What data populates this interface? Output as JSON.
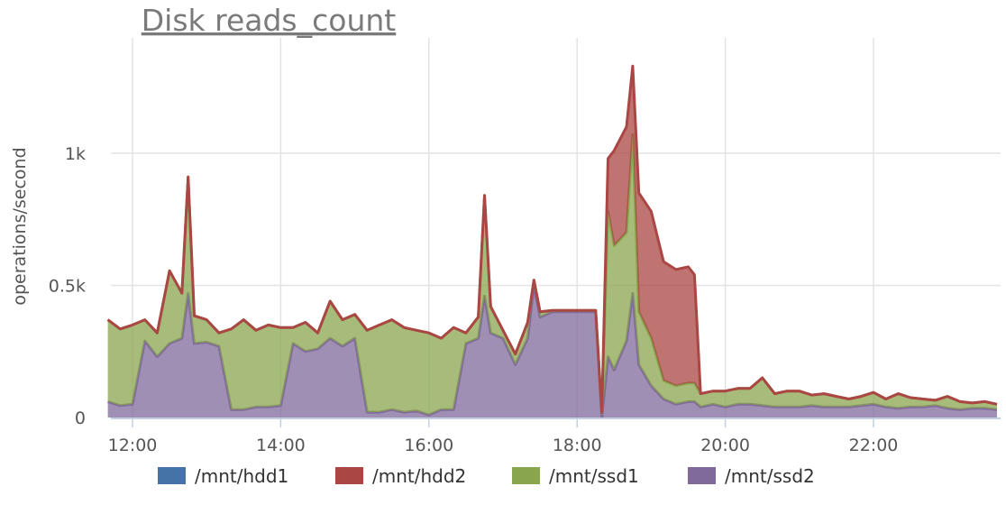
{
  "chart_data": {
    "type": "area",
    "stacked": true,
    "title": "Disk reads_count",
    "xlabel": "",
    "ylabel": "operations/second",
    "ylim": [
      0,
      1450
    ],
    "xlim": [
      "11:40",
      "23:45"
    ],
    "grid": true,
    "legend_position": "bottom",
    "x_ticks": [
      "12:00",
      "14:00",
      "16:00",
      "18:00",
      "20:00",
      "22:00"
    ],
    "y_ticks": [
      {
        "value": 0,
        "label": "0"
      },
      {
        "value": 500,
        "label": "0.5k"
      },
      {
        "value": 1000,
        "label": "1k"
      }
    ],
    "x": [
      "11:40",
      "11:50",
      "12:00",
      "12:10",
      "12:20",
      "12:30",
      "12:40",
      "12:45",
      "12:50",
      "13:00",
      "13:10",
      "13:20",
      "13:30",
      "13:40",
      "13:50",
      "14:00",
      "14:10",
      "14:20",
      "14:30",
      "14:40",
      "14:50",
      "15:00",
      "15:10",
      "15:20",
      "15:30",
      "15:40",
      "15:50",
      "16:00",
      "16:10",
      "16:20",
      "16:30",
      "16:40",
      "16:45",
      "16:50",
      "17:00",
      "17:10",
      "17:20",
      "17:25",
      "17:30",
      "17:40",
      "17:50",
      "18:00",
      "18:10",
      "18:15",
      "18:20",
      "18:25",
      "18:30",
      "18:40",
      "18:45",
      "18:50",
      "19:00",
      "19:10",
      "19:20",
      "19:30",
      "19:35",
      "19:40",
      "19:50",
      "20:00",
      "20:10",
      "20:20",
      "20:30",
      "20:40",
      "20:50",
      "21:00",
      "21:10",
      "21:20",
      "21:30",
      "21:40",
      "21:50",
      "22:00",
      "22:10",
      "22:20",
      "22:30",
      "22:40",
      "22:50",
      "23:00",
      "23:10",
      "23:20",
      "23:30",
      "23:40"
    ],
    "series": [
      {
        "name": "/mnt/hdd1",
        "color": "#4572a7",
        "values": [
          0,
          0,
          0,
          0,
          0,
          0,
          0,
          0,
          0,
          0,
          0,
          0,
          0,
          0,
          0,
          0,
          0,
          0,
          0,
          0,
          0,
          0,
          0,
          0,
          0,
          0,
          0,
          0,
          0,
          0,
          0,
          0,
          0,
          0,
          0,
          0,
          0,
          0,
          0,
          0,
          0,
          0,
          0,
          0,
          0,
          0,
          0,
          0,
          0,
          0,
          0,
          0,
          0,
          0,
          0,
          0,
          0,
          0,
          0,
          0,
          0,
          0,
          0,
          0,
          0,
          0,
          0,
          0,
          0,
          0,
          0,
          0,
          0,
          0,
          0,
          0,
          0,
          0,
          0,
          0
        ]
      },
      {
        "name": "/mnt/hdd2",
        "color": "#aa4643",
        "values": [
          0,
          0,
          0,
          0,
          0,
          0,
          0,
          0,
          0,
          0,
          0,
          0,
          0,
          0,
          0,
          0,
          0,
          0,
          0,
          0,
          0,
          0,
          0,
          0,
          0,
          0,
          0,
          0,
          0,
          0,
          0,
          0,
          0,
          0,
          0,
          0,
          0,
          0,
          0,
          0,
          0,
          0,
          0,
          0,
          0,
          200,
          360,
          400,
          260,
          450,
          480,
          450,
          440,
          440,
          410,
          0,
          0,
          0,
          0,
          0,
          0,
          0,
          0,
          0,
          0,
          0,
          0,
          0,
          0,
          0,
          0,
          0,
          0,
          0,
          0,
          0,
          0,
          0,
          0,
          0
        ]
      },
      {
        "name": "/mnt/ssd1",
        "color": "#89a54e",
        "values": [
          310,
          290,
          300,
          80,
          90,
          275,
          170,
          440,
          105,
          85,
          50,
          305,
          340,
          290,
          310,
          295,
          60,
          110,
          60,
          140,
          100,
          90,
          310,
          330,
          340,
          320,
          305,
          310,
          270,
          310,
          40,
          80,
          380,
          100,
          30,
          40,
          60,
          20,
          20,
          5,
          5,
          5,
          5,
          5,
          20,
          550,
          470,
          410,
          600,
          200,
          180,
          70,
          70,
          70,
          70,
          50,
          50,
          60,
          60,
          60,
          105,
          50,
          60,
          60,
          40,
          50,
          40,
          30,
          35,
          45,
          30,
          55,
          35,
          30,
          20,
          45,
          30,
          20,
          25,
          20
        ]
      },
      {
        "name": "/mnt/ssd2",
        "color": "#80699b",
        "values": [
          60,
          45,
          50,
          290,
          230,
          280,
          300,
          470,
          280,
          285,
          270,
          30,
          30,
          40,
          40,
          45,
          280,
          250,
          260,
          300,
          270,
          300,
          20,
          20,
          30,
          20,
          25,
          10,
          30,
          30,
          280,
          300,
          460,
          320,
          300,
          200,
          300,
          500,
          380,
          400,
          400,
          400,
          400,
          400,
          0,
          230,
          180,
          290,
          470,
          200,
          120,
          70,
          50,
          60,
          60,
          40,
          50,
          40,
          50,
          50,
          45,
          40,
          40,
          40,
          45,
          40,
          40,
          40,
          45,
          50,
          40,
          35,
          40,
          40,
          45,
          35,
          30,
          35,
          35,
          30
        ]
      }
    ]
  }
}
